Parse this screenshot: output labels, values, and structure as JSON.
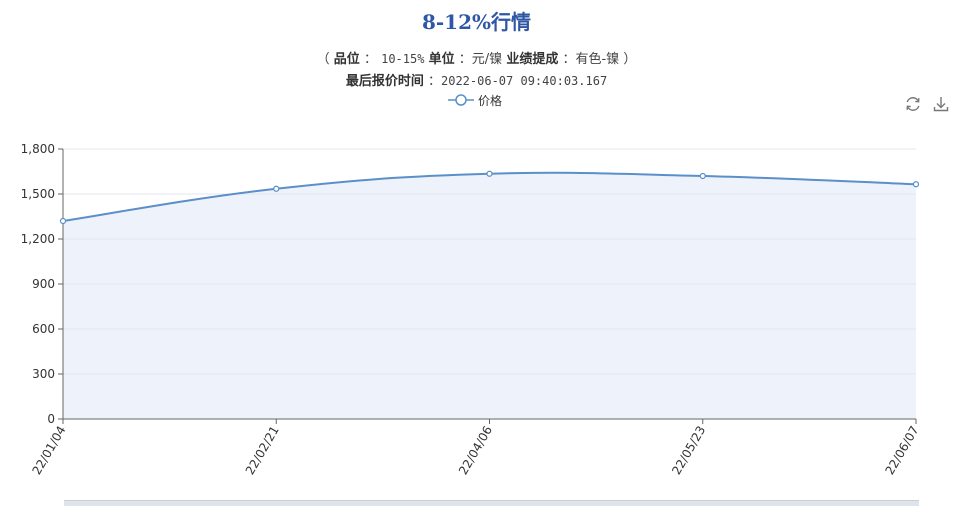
{
  "header": {
    "title": "8-12%行情",
    "paren_open": "（",
    "pinwei_label": "品位",
    "pinwei_sep": "：",
    "pinwei_value": "10-15%",
    "unit_label": "单位",
    "unit_sep": "：",
    "unit_value": "元/镍",
    "category_label": "业绩提成",
    "category_sep": "：",
    "category_value": "有色-镍",
    "paren_close": "）",
    "quote_time_label": "最后报价时间",
    "quote_time_sep": "：",
    "quote_time_value": "2022-06-07 09:40:03.167"
  },
  "toolbox": {
    "refresh_icon": "refresh-icon",
    "download_icon": "download-icon"
  },
  "colors": {
    "line": "#5b8fc9",
    "area": "#eef3fb",
    "title": "#2f57a5",
    "grid": "#e3e7ee",
    "axis": "#666666"
  },
  "chart_data": {
    "type": "area",
    "legend": [
      "价格"
    ],
    "legend_position": "top-center",
    "x": [
      "22/01/04",
      "22/02/21",
      "22/04/06",
      "22/05/23",
      "22/06/07"
    ],
    "series": [
      {
        "name": "价格",
        "values": [
          1320,
          1535,
          1635,
          1620,
          1565
        ]
      }
    ],
    "y_ticks": [
      "0",
      "300",
      "600",
      "900",
      "1,200",
      "1,500",
      "1,800"
    ],
    "ylim": [
      0,
      1800
    ],
    "y_step": 300,
    "grid": true,
    "smooth": true
  }
}
